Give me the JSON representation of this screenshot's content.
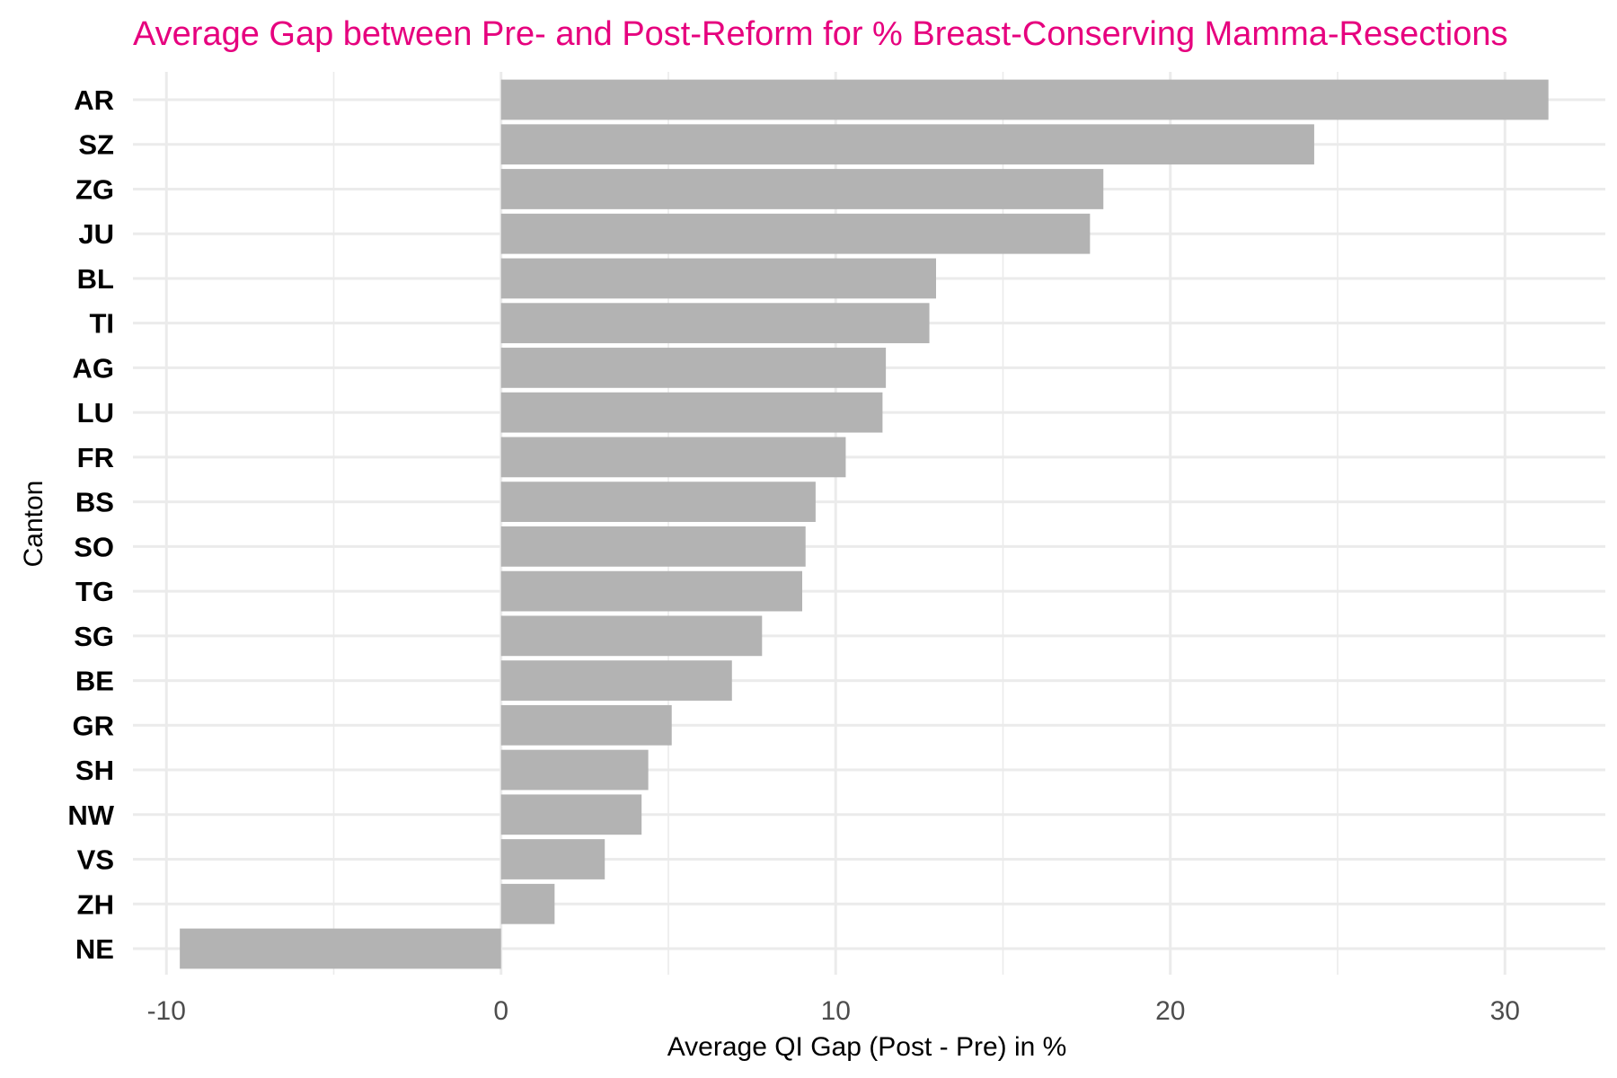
{
  "chart_data": {
    "type": "bar",
    "orientation": "horizontal",
    "title": "Average Gap between Pre- and Post-Reform for % Breast-Conserving Mamma-Resections",
    "xlabel": "Average QI Gap (Post - Pre) in %",
    "ylabel": "Canton",
    "categories": [
      "AR",
      "SZ",
      "ZG",
      "JU",
      "BL",
      "TI",
      "AG",
      "LU",
      "FR",
      "BS",
      "SO",
      "TG",
      "SG",
      "BE",
      "GR",
      "SH",
      "NW",
      "VS",
      "ZH",
      "NE"
    ],
    "values": [
      31.3,
      24.3,
      18.0,
      17.6,
      13.0,
      12.8,
      11.5,
      11.4,
      10.3,
      9.4,
      9.1,
      9.0,
      7.8,
      6.9,
      5.1,
      4.4,
      4.2,
      3.1,
      1.6,
      -9.6
    ],
    "xlim": [
      -11,
      33
    ],
    "xticks": [
      -10,
      0,
      10,
      20,
      30
    ],
    "xtick_labels": [
      "-10",
      "0",
      "10",
      "20",
      "30"
    ],
    "grid": true,
    "legend": "none",
    "colors": {
      "bar": "#b3b3b3",
      "title": "#e6007e",
      "grid": "#ebebeb",
      "tick_text": "#4d4d4d",
      "category_text": "#000000"
    }
  }
}
